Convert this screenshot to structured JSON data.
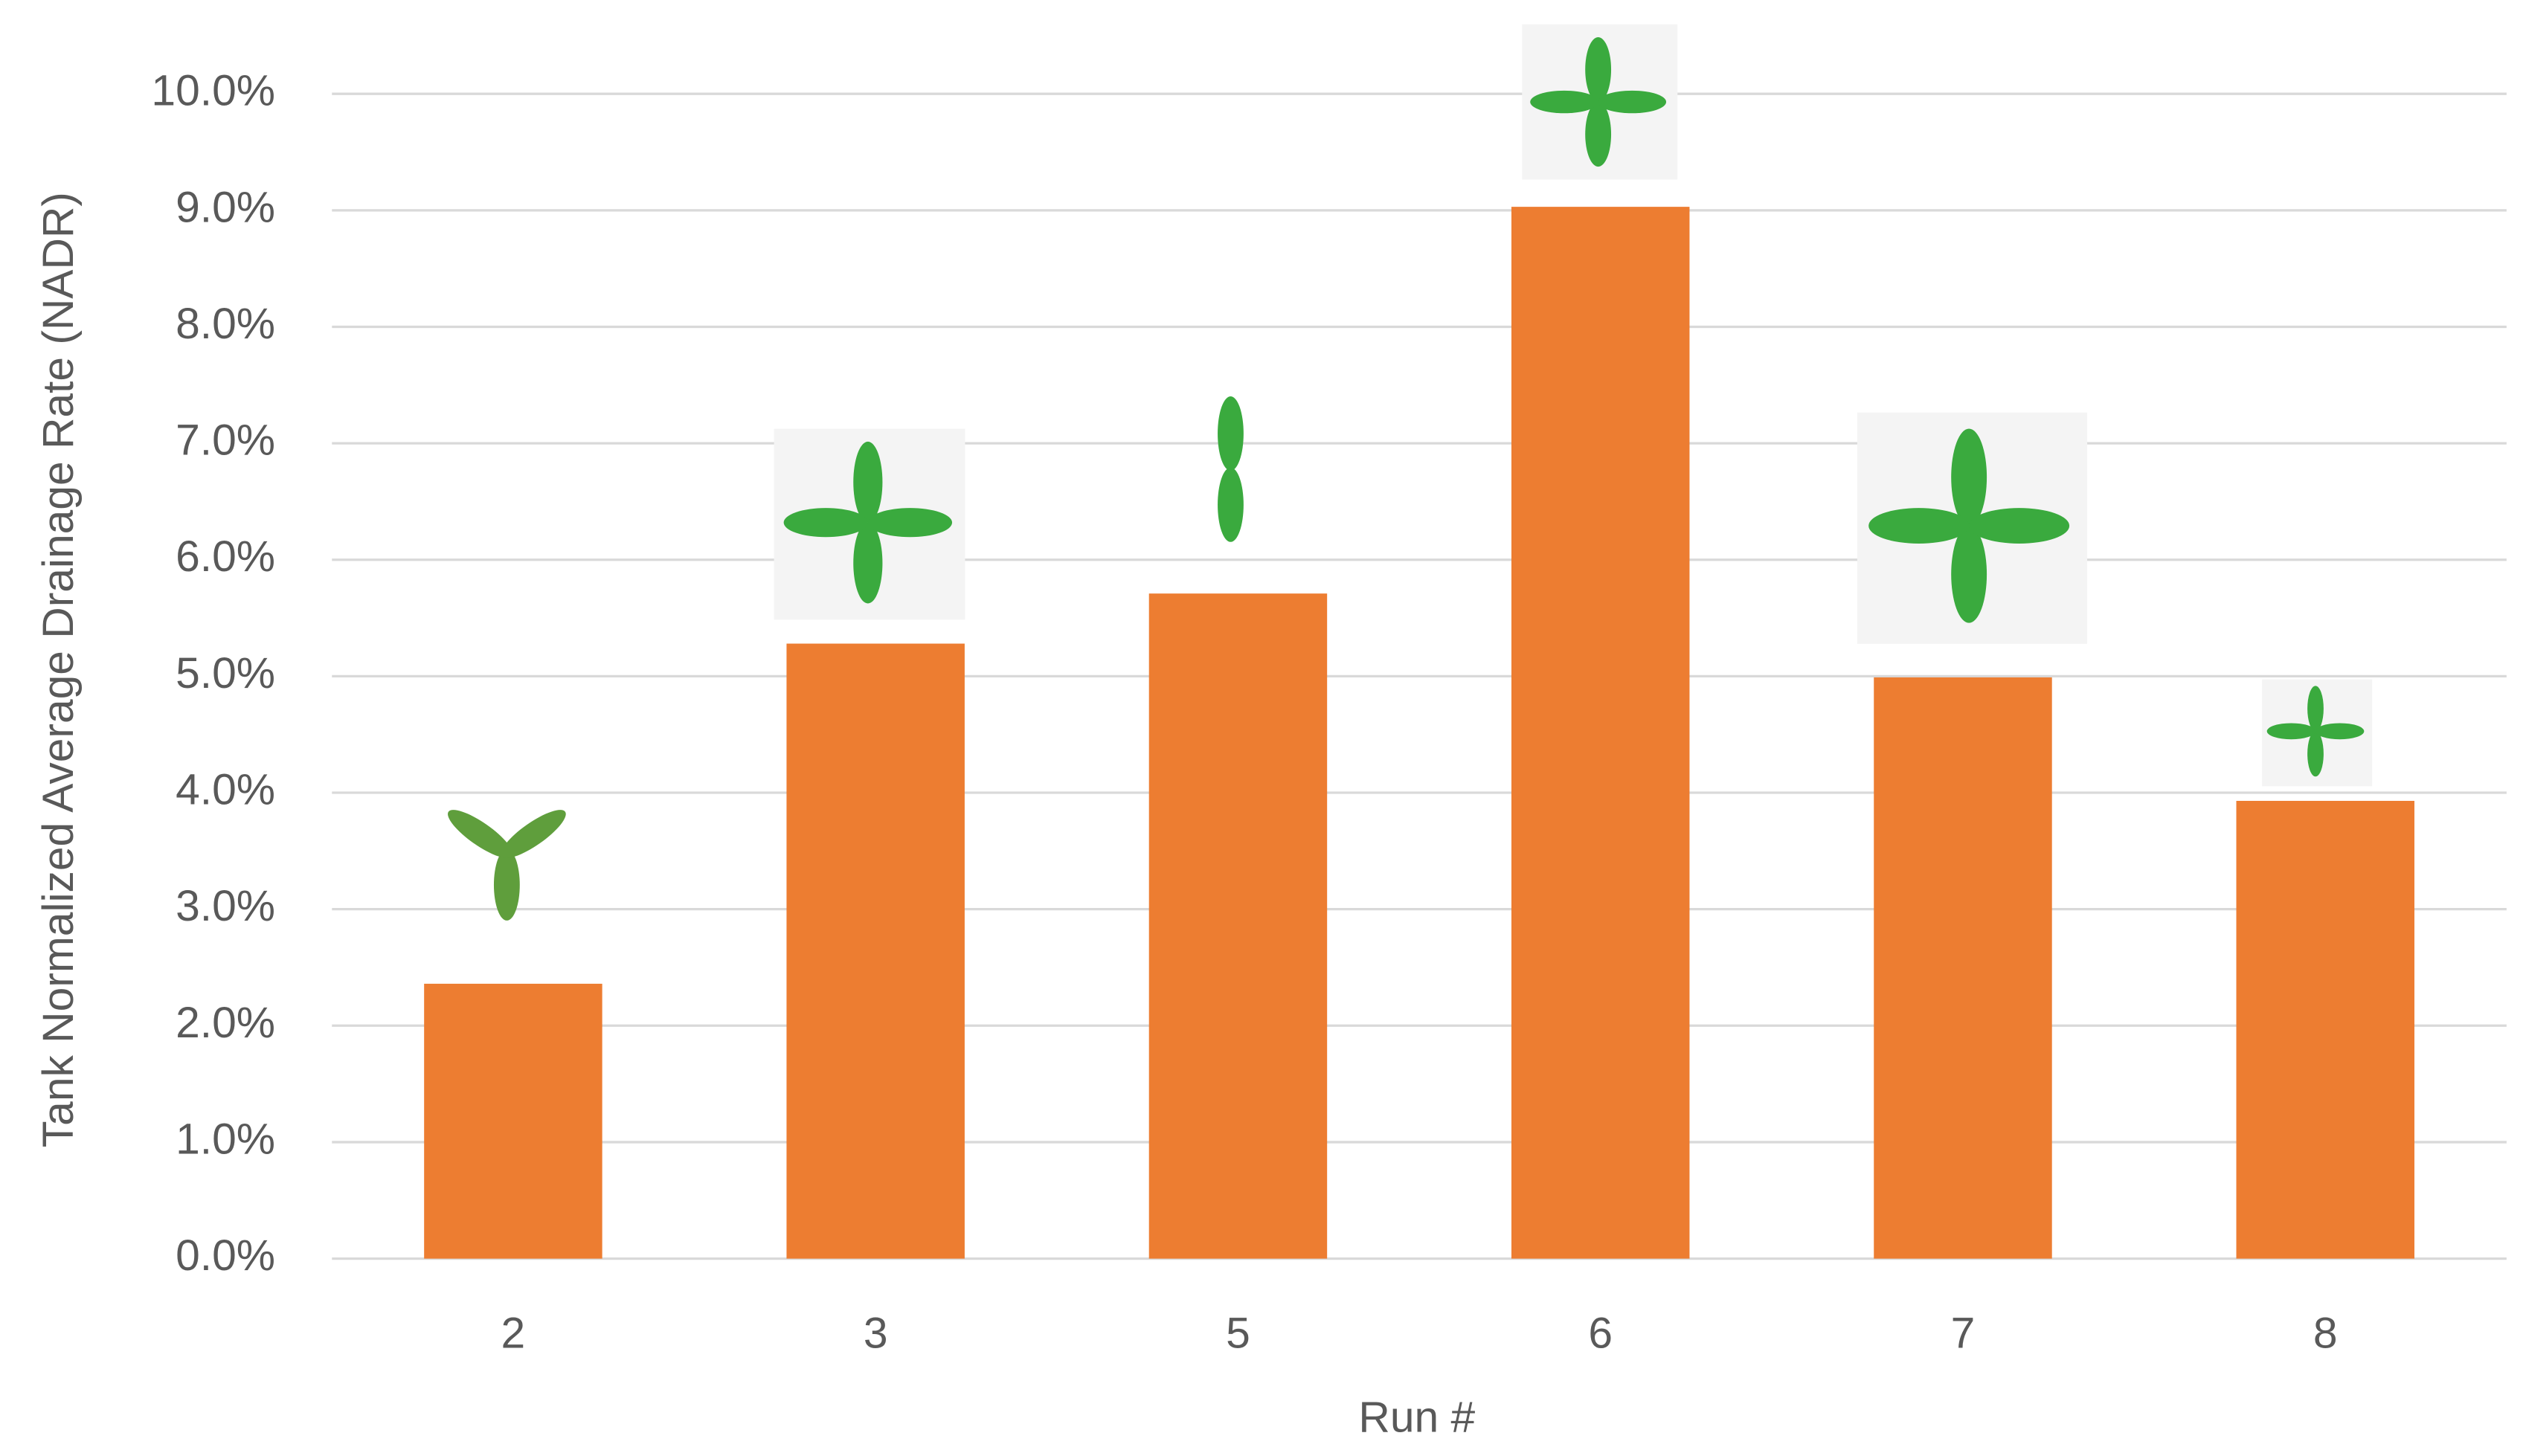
{
  "chart_data": {
    "type": "bar",
    "x_label": "Run #",
    "y_label": "Tank Normalized Average Drainage Rate (NADR)",
    "categories": [
      "2",
      "3",
      "5",
      "6",
      "7",
      "8"
    ],
    "values": [
      2.36,
      5.28,
      5.71,
      9.03,
      4.99,
      3.93
    ],
    "color": "#ed7d31",
    "ylim": [
      0,
      10.3
    ],
    "yticks": [
      {
        "value": 0,
        "label": "0.0%"
      },
      {
        "value": 1,
        "label": "1.0%"
      },
      {
        "value": 2,
        "label": "2.0%"
      },
      {
        "value": 3,
        "label": "3.0%"
      },
      {
        "value": 4,
        "label": "4.0%"
      },
      {
        "value": 5,
        "label": "5.0%"
      },
      {
        "value": 6,
        "label": "6.0%"
      },
      {
        "value": 7,
        "label": "7.0%"
      },
      {
        "value": 8,
        "label": "8.0%"
      },
      {
        "value": 9,
        "label": "9.0%"
      },
      {
        "value": 10,
        "label": "10.0%"
      }
    ],
    "grid": true
  }
}
